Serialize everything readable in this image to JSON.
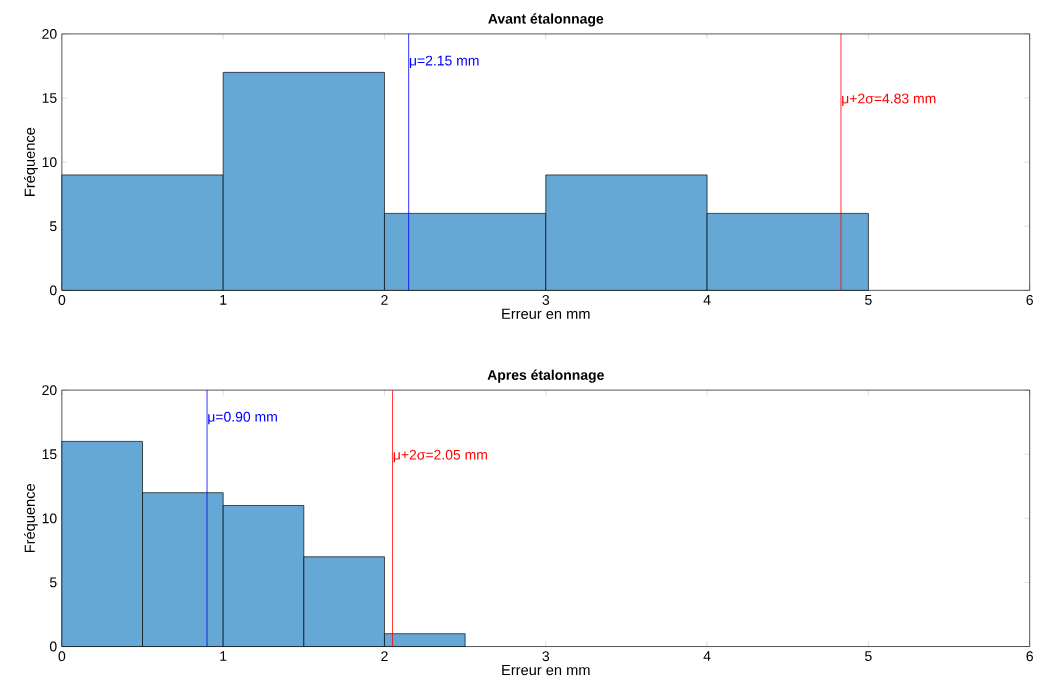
{
  "chart_data": [
    {
      "type": "histogram",
      "title": "Avant étalonnage",
      "xlabel": "Erreur en mm",
      "ylabel": "Fréquence",
      "color": "#65a8d6",
      "bins": [
        0,
        1,
        2,
        3,
        4,
        5
      ],
      "values": [
        9,
        17,
        6,
        9,
        6
      ],
      "xlim": [
        0,
        6
      ],
      "ylim": [
        0,
        20
      ],
      "xticks": [
        0,
        1,
        2,
        3,
        4,
        5,
        6
      ],
      "yticks": [
        0,
        5,
        10,
        15,
        20
      ],
      "ref_lines": [
        {
          "axis": "x",
          "value": 2.15,
          "label": "μ=2.15 mm",
          "color": "#0000ff"
        },
        {
          "axis": "x",
          "value": 4.83,
          "label": "μ+2σ=4.83 mm",
          "color": "#ff0000"
        }
      ]
    },
    {
      "type": "histogram",
      "title": "Apres étalonnage",
      "xlabel": "Erreur en mm",
      "ylabel": "Fréquence",
      "color": "#65a8d6",
      "bins": [
        0,
        0.5,
        1,
        1.5,
        2,
        2.5
      ],
      "values": [
        16,
        12,
        11,
        7,
        1
      ],
      "xlim": [
        0,
        6
      ],
      "ylim": [
        0,
        20
      ],
      "xticks": [
        0,
        1,
        2,
        3,
        4,
        5,
        6
      ],
      "yticks": [
        0,
        5,
        10,
        15,
        20
      ],
      "ref_lines": [
        {
          "axis": "x",
          "value": 0.9,
          "label": "μ=0.90 mm",
          "color": "#0000ff"
        },
        {
          "axis": "x",
          "value": 2.05,
          "label": "μ+2σ=2.05 mm",
          "color": "#ff0000"
        }
      ]
    }
  ]
}
